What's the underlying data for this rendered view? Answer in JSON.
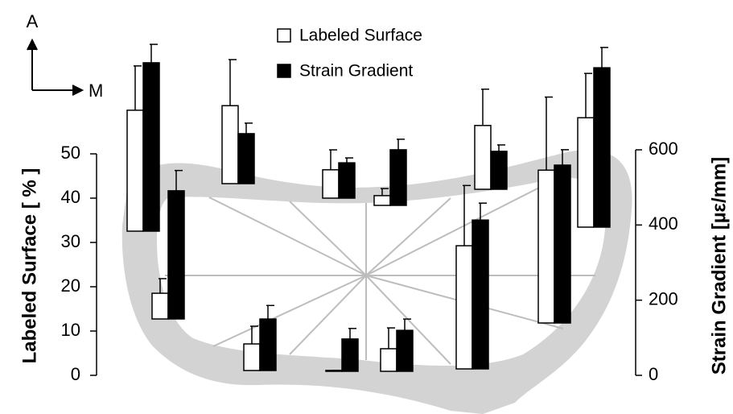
{
  "chart_data": {
    "type": "bar",
    "compass": [
      "A",
      "M"
    ],
    "ylabel": "Labeled Surface [ % ]",
    "y2label": "Strain Gradient [µε/mm]",
    "categories": [
      null,
      null,
      null,
      null,
      null,
      null,
      null,
      null,
      null,
      null,
      null,
      null
    ],
    "series": [
      {
        "name": "Labeled Surface",
        "color": "#ffffff",
        "values": [
          27.3,
          5.8,
          17.6,
          6,
          6.4,
          0.2,
          2.2,
          5.1,
          27.8,
          14.4,
          34.5,
          24.7
        ],
        "errors": [
          10,
          3.3,
          10.4,
          4,
          4.5,
          0,
          1.6,
          4.7,
          13.6,
          8.2,
          16.5,
          10
        ]
      },
      {
        "name": "Strain Gradient",
        "color": "#000000",
        "axis": "y2",
        "values": [
          448,
          341,
          133,
          137,
          94,
          86,
          148,
          109,
          396,
          101,
          420,
          424
        ],
        "errors": [
          49,
          54,
          28,
          36,
          13,
          28,
          28,
          30,
          45,
          17,
          41,
          54
        ]
      }
    ],
    "ylim": [
      0,
      50
    ],
    "yticks": [
      0,
      10,
      20,
      30,
      40,
      50
    ],
    "y2lim": [
      0,
      600
    ],
    "y2ticks": [
      0,
      200,
      400,
      600
    ]
  }
}
